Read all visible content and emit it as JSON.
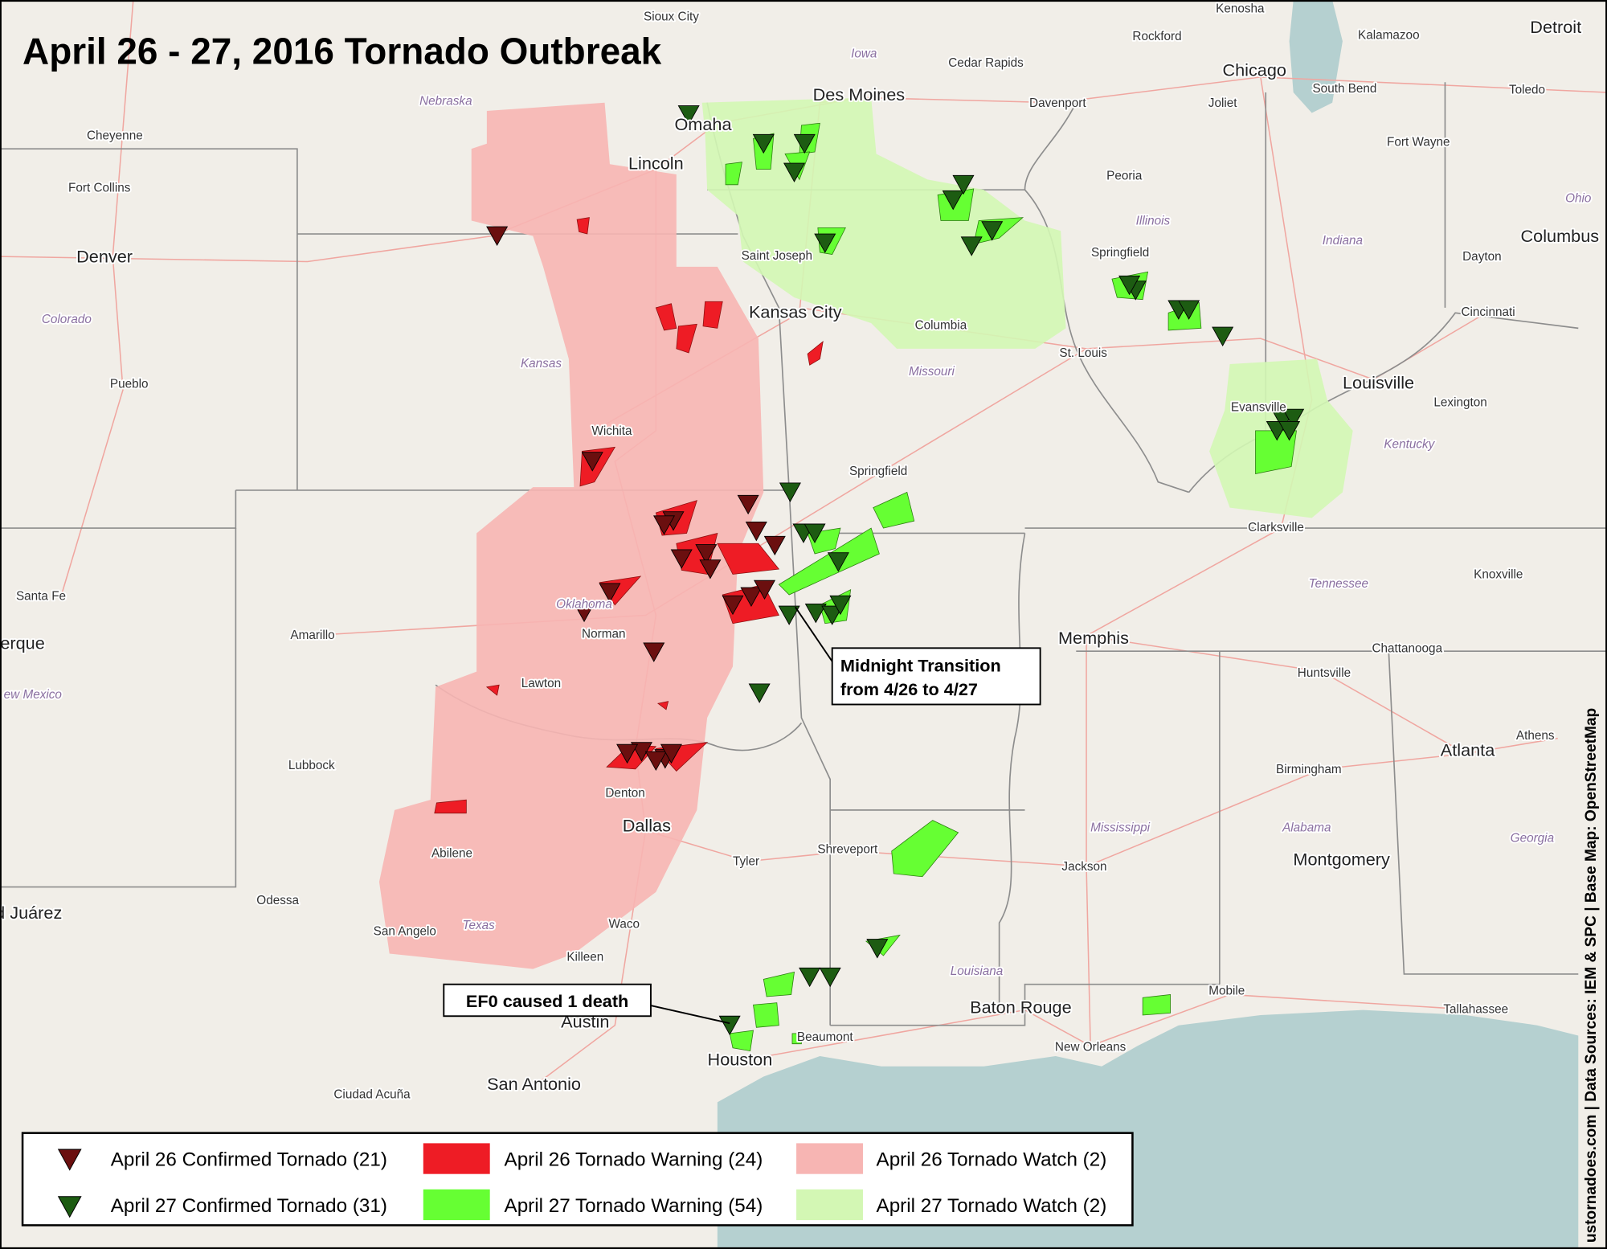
{
  "title": "April 26 - 27, 2016 Tornado Outbreak",
  "places": [
    "Sioux City",
    "Iowa",
    "Cedar Rapids",
    "Rockford",
    "Kenosha",
    "Kalamazoo",
    "Detroit",
    "Nebraska",
    "Des Moines",
    "Davenport",
    "Chicago",
    "Joliet",
    "South Bend",
    "Toledo",
    "Omaha",
    "Cheyenne",
    "Lincoln",
    "Fort Wayne",
    "Fort Collins",
    "Peoria",
    "Ohio",
    "Illinois",
    "Indiana",
    "Columbus",
    "Denver",
    "Saint Joseph",
    "Springfield",
    "Dayton",
    "Colorado",
    "Kansas City",
    "Columbia",
    "Cincinnati",
    "Kansas",
    "Missouri",
    "St. Louis",
    "Pueblo",
    "Louisville",
    "Lexington",
    "Evansville",
    "Wichita",
    "Kentucky",
    "Springfield",
    "Clarksville",
    "Knoxville",
    "Santa Fe",
    "Tennessee",
    "Oklahoma",
    "Norman",
    "Amarillo",
    "erque",
    "Memphis",
    "Chattanooga",
    "Lawton",
    "Huntsville",
    "ew Mexico",
    "Athens",
    "Lubbock",
    "Atlanta",
    "Birmingham",
    "Denton",
    "Dallas",
    "Mississippi",
    "Alabama",
    "Georgia",
    "Shreveport",
    "Montgomery",
    "Abilene",
    "Tyler",
    "Jackson",
    "Odessa",
    "d Juárez",
    "Waco",
    "Texas",
    "San Angelo",
    "Killeen",
    "Louisiana",
    "Baton Rouge",
    "Mobile",
    "Tallahassee",
    "Austin",
    "Beaumont",
    "New Orleans",
    "Houston",
    "San Antonio",
    "Ciudad Acuña"
  ],
  "annotations": {
    "midnight": [
      "Midnight Transition",
      "from 4/26 to 4/27"
    ],
    "death": "EF0 caused 1 death"
  },
  "credits": "ustornadoes.com | Data Sources: IEM & SPC | Base Map: OpenStreetMap",
  "legend": [
    "April 26 Confirmed Tornado (21)",
    "April 26 Tornado Warning (24)",
    "April 26 Tornado Watch (2)",
    "April 27 Confirmed Tornado (31)",
    "April 27 Tornado Warning (54)",
    "April 27 Tornado Watch (2)"
  ]
}
